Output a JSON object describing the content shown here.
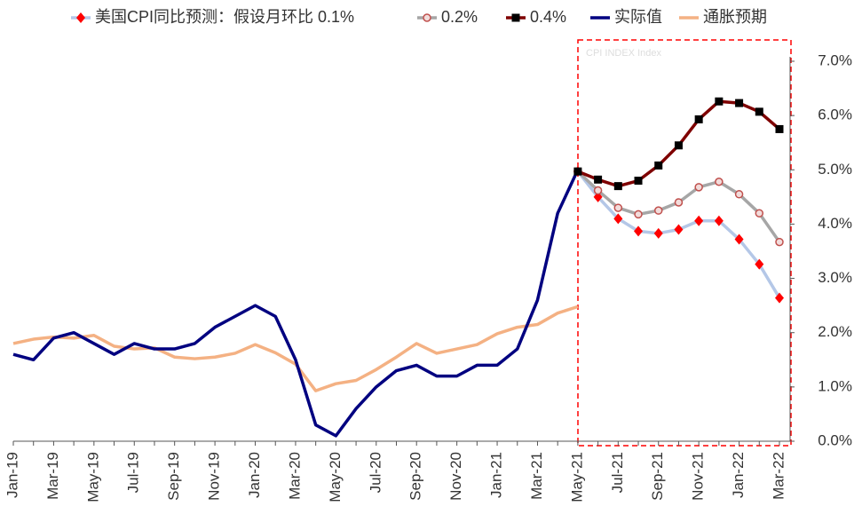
{
  "chart_data": {
    "type": "line",
    "categories": [
      "Jan-19",
      null,
      "Mar-19",
      null,
      "May-19",
      null,
      "Jul-19",
      null,
      "Sep-19",
      null,
      "Nov-19",
      null,
      "Jan-20",
      null,
      "Mar-20",
      null,
      "May-20",
      null,
      "Jul-20",
      null,
      "Sep-20",
      null,
      "Nov-20",
      null,
      "Jan-21",
      null,
      "Mar-21",
      null,
      "May-21",
      null,
      "Jul-21",
      null,
      "Sep-21",
      null,
      "Nov-21",
      null,
      "Jan-22",
      null,
      "Mar-22"
    ],
    "series": [
      {
        "name": "美国CPI同比预测：假设月环比 0.1%",
        "color": "#b4c7e7",
        "marker": "diamond",
        "marker_color": "#ff0000",
        "values": [
          null,
          null,
          null,
          null,
          null,
          null,
          null,
          null,
          null,
          null,
          null,
          null,
          null,
          null,
          null,
          null,
          null,
          null,
          null,
          null,
          null,
          null,
          null,
          null,
          null,
          null,
          null,
          null,
          4.97,
          4.5,
          4.1,
          3.87,
          3.83,
          3.9,
          4.06,
          4.06,
          3.72,
          3.26,
          2.64
        ]
      },
      {
        "name": "0.2%",
        "color": "#a6a6a6",
        "marker": "circle",
        "marker_color": "#c0504d",
        "values": [
          null,
          null,
          null,
          null,
          null,
          null,
          null,
          null,
          null,
          null,
          null,
          null,
          null,
          null,
          null,
          null,
          null,
          null,
          null,
          null,
          null,
          null,
          null,
          null,
          null,
          null,
          null,
          null,
          4.97,
          4.62,
          4.3,
          4.18,
          4.25,
          4.4,
          4.68,
          4.78,
          4.55,
          4.2,
          3.67
        ]
      },
      {
        "name": "0.4%",
        "color": "#7f0000",
        "marker": "square",
        "marker_color": "#000000",
        "values": [
          null,
          null,
          null,
          null,
          null,
          null,
          null,
          null,
          null,
          null,
          null,
          null,
          null,
          null,
          null,
          null,
          null,
          null,
          null,
          null,
          null,
          null,
          null,
          null,
          null,
          null,
          null,
          null,
          4.97,
          4.82,
          4.7,
          4.8,
          5.08,
          5.45,
          5.93,
          6.26,
          6.23,
          6.07,
          5.75
        ]
      },
      {
        "name": "实际值",
        "color": "#000080",
        "values": [
          1.6,
          1.5,
          1.9,
          2.0,
          1.8,
          1.6,
          1.8,
          1.7,
          1.7,
          1.8,
          2.1,
          2.3,
          2.5,
          2.3,
          1.5,
          0.3,
          0.1,
          0.6,
          1.0,
          1.3,
          1.4,
          1.2,
          1.2,
          1.4,
          1.4,
          1.7,
          2.6,
          4.2,
          5.0,
          null,
          null,
          null,
          null,
          null,
          null,
          null,
          null,
          null,
          null
        ]
      },
      {
        "name": "通胀预期",
        "color": "#f4b183",
        "values": [
          1.8,
          1.88,
          1.92,
          1.9,
          1.95,
          1.75,
          1.7,
          1.72,
          1.55,
          1.52,
          1.55,
          1.62,
          1.78,
          1.63,
          1.42,
          0.93,
          1.06,
          1.12,
          1.32,
          1.55,
          1.8,
          1.62,
          1.7,
          1.78,
          1.98,
          2.1,
          2.15,
          2.36,
          2.48,
          null,
          null,
          null,
          null,
          null,
          null,
          null,
          null,
          null,
          null
        ]
      }
    ],
    "annotation": "CPI INDEX Index",
    "ylim": [
      0,
      7
    ],
    "yticks": [
      {
        "value": 0,
        "label": "0.0%"
      },
      {
        "value": 1,
        "label": "1.0%"
      },
      {
        "value": 2,
        "label": "2.0%"
      },
      {
        "value": 3,
        "label": "3.0%"
      },
      {
        "value": 4,
        "label": "4.0%"
      },
      {
        "value": 5,
        "label": "5.0%"
      },
      {
        "value": 6,
        "label": "6.0%"
      },
      {
        "value": 7,
        "label": "7.0%"
      }
    ],
    "y_axis_side": "right"
  }
}
